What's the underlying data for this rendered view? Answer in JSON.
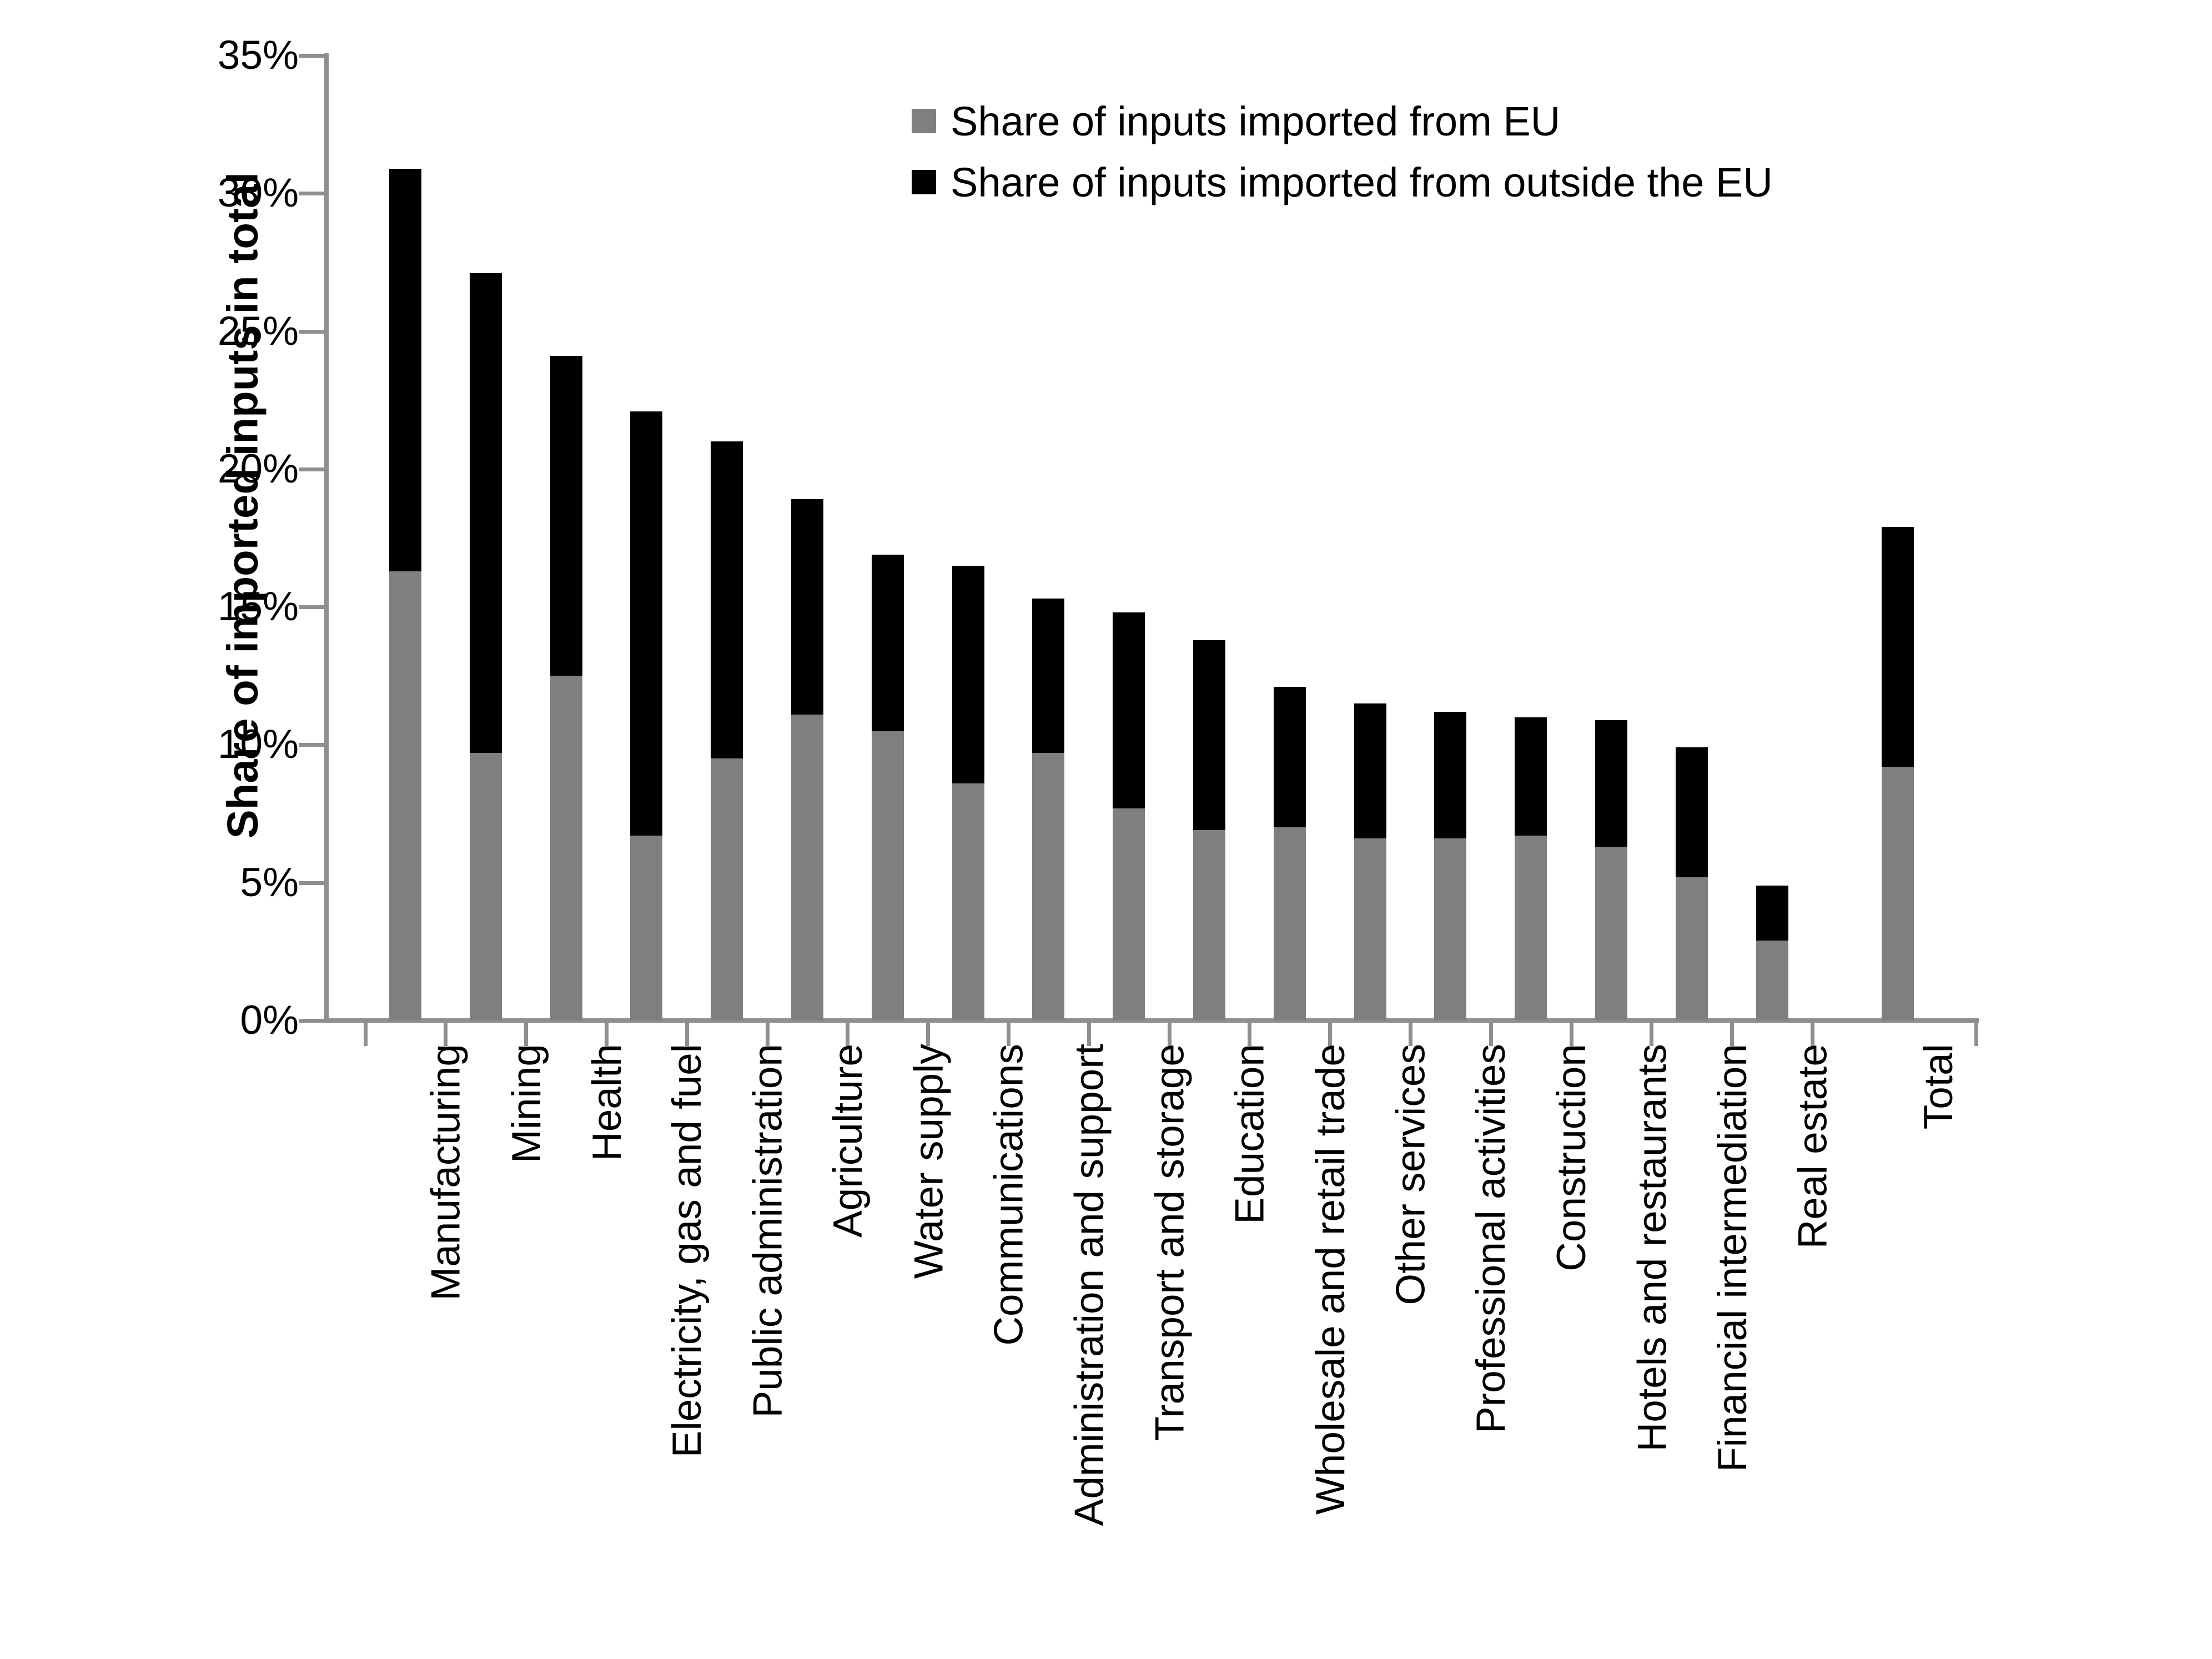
{
  "legend": [
    {
      "label": "Share of inputs imported from EU",
      "color": "#7f7f7f"
    },
    {
      "label": "Share of inputs imported from outside the EU",
      "color": "#000000"
    }
  ],
  "chart_data": {
    "type": "bar",
    "stacked": true,
    "title": "",
    "xlabel": "",
    "ylabel": "Share of imported inputs in total",
    "ylim": [
      0,
      35
    ],
    "ytick_step": 5,
    "ytick_format": "percent",
    "grid": false,
    "legend_position": "top-right-inside",
    "last_category_separated": true,
    "categories": [
      "Manufacturing",
      "Mining",
      "Health",
      "Electricity, gas and fuel",
      "Public administration",
      "Agriculture",
      "Water supply",
      "Communications",
      "Administration and support",
      "Transport and storage",
      "Education",
      "Wholesale and retail trade",
      "Other services",
      "Professional activities",
      "Construction",
      "Hotels and restaurants",
      "Financial intermediation",
      "Real estate",
      "Total"
    ],
    "series": [
      {
        "name": "Share of inputs imported from EU",
        "color": "#7f7f7f",
        "values": [
          16.3,
          9.7,
          12.5,
          6.7,
          9.5,
          11.1,
          10.5,
          8.6,
          9.7,
          7.7,
          6.9,
          7.0,
          6.6,
          6.6,
          6.7,
          6.3,
          5.2,
          2.9,
          9.2
        ]
      },
      {
        "name": "Share of inputs imported from outside the EU",
        "color": "#000000",
        "values": [
          14.6,
          17.4,
          11.6,
          15.4,
          11.5,
          7.8,
          6.4,
          7.9,
          5.6,
          7.1,
          6.9,
          5.1,
          4.9,
          4.6,
          4.3,
          4.6,
          4.7,
          2.0,
          8.7
        ]
      }
    ],
    "stack_totals": [
      30.9,
      27.1,
      24.1,
      22.1,
      21.0,
      18.9,
      16.9,
      16.5,
      15.3,
      14.8,
      13.8,
      12.1,
      11.5,
      11.2,
      11.0,
      10.9,
      9.9,
      4.9,
      17.9
    ]
  }
}
